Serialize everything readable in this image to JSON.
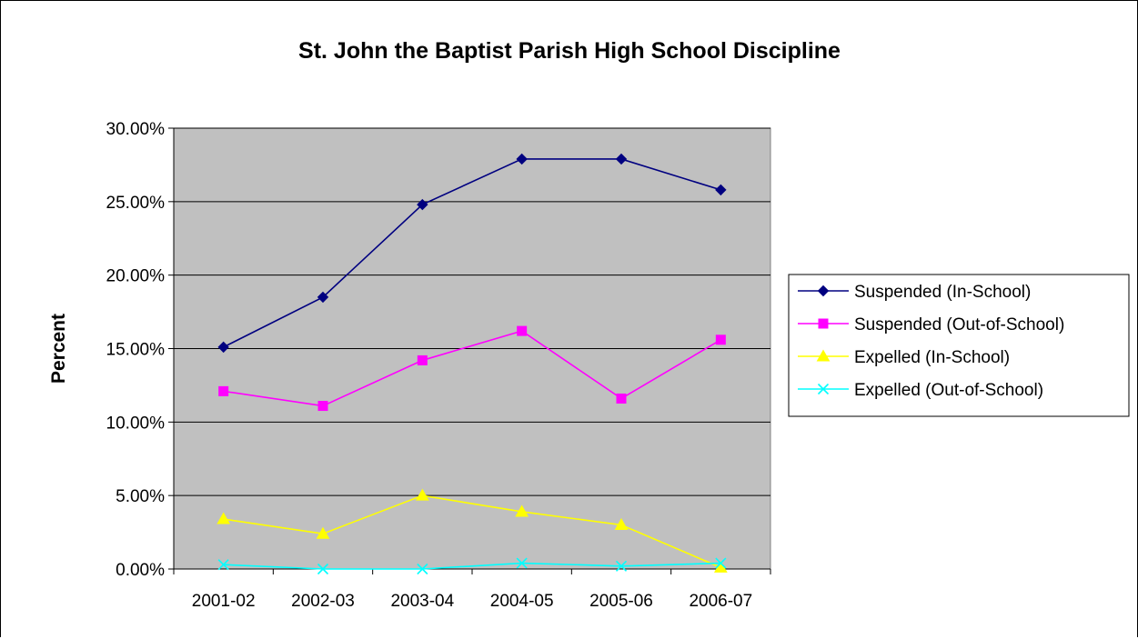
{
  "chart_data": {
    "type": "line",
    "title": "St. John the Baptist Parish High School Discipline",
    "xlabel": "",
    "ylabel": "Percent",
    "categories": [
      "2001-02",
      "2002-03",
      "2003-04",
      "2004-05",
      "2005-06",
      "2006-07"
    ],
    "ylim": [
      0,
      30
    ],
    "yticks": [
      0,
      5,
      10,
      15,
      20,
      25,
      30
    ],
    "ytick_labels": [
      "0.00%",
      "5.00%",
      "10.00%",
      "15.00%",
      "20.00%",
      "25.00%",
      "30.00%"
    ],
    "grid": true,
    "plot_background": "#C0C0C0",
    "legend_position": "right",
    "series": [
      {
        "name": "Suspended (In-School)",
        "color": "#000080",
        "marker": "diamond",
        "values": [
          15.1,
          18.5,
          24.8,
          27.9,
          27.9,
          25.8
        ]
      },
      {
        "name": "Suspended (Out-of-School)",
        "color": "#FF00FF",
        "marker": "square",
        "values": [
          12.1,
          11.1,
          14.2,
          16.2,
          11.6,
          15.6
        ]
      },
      {
        "name": "Expelled (In-School)",
        "color": "#FFFF00",
        "marker": "triangle",
        "values": [
          3.4,
          2.4,
          5.0,
          3.9,
          3.0,
          0.1
        ]
      },
      {
        "name": "Expelled (Out-of-School)",
        "color": "#00FFFF",
        "marker": "x",
        "values": [
          0.3,
          0.0,
          0.0,
          0.4,
          0.2,
          0.4
        ]
      }
    ]
  }
}
